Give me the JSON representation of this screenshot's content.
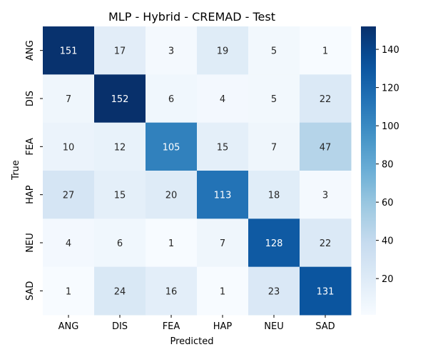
{
  "chart_data": {
    "type": "heatmap",
    "title": "MLP - Hybrid - CREMAD - Test",
    "xlabel": "Predicted",
    "ylabel": "True",
    "x_categories": [
      "ANG",
      "DIS",
      "FEA",
      "HAP",
      "NEU",
      "SAD"
    ],
    "y_categories": [
      "ANG",
      "DIS",
      "FEA",
      "HAP",
      "NEU",
      "SAD"
    ],
    "values": [
      [
        151,
        17,
        3,
        19,
        5,
        1
      ],
      [
        7,
        152,
        6,
        4,
        5,
        22
      ],
      [
        10,
        12,
        105,
        15,
        7,
        47
      ],
      [
        27,
        15,
        20,
        113,
        18,
        3
      ],
      [
        4,
        6,
        1,
        7,
        128,
        22
      ],
      [
        1,
        24,
        16,
        1,
        23,
        131
      ]
    ],
    "colorbar": {
      "min": 1,
      "max": 152,
      "ticks": [
        20,
        40,
        60,
        80,
        100,
        120,
        140
      ],
      "colormap": "Blues",
      "location": "right"
    },
    "grid": false
  }
}
